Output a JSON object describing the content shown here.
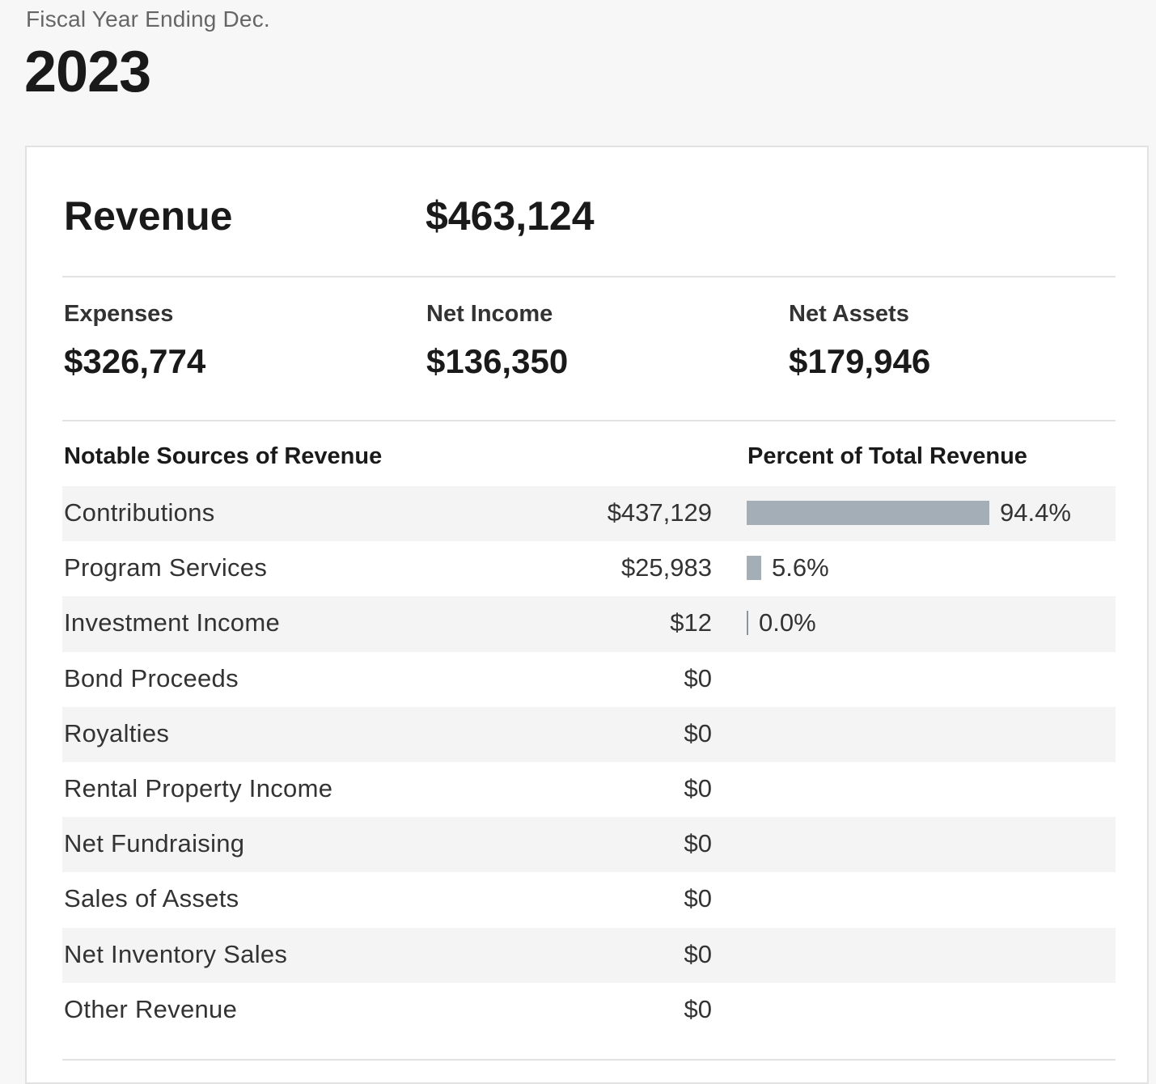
{
  "fiscal": {
    "label": "Fiscal Year Ending Dec.",
    "year": "2023"
  },
  "summary": {
    "revenue_label": "Revenue",
    "revenue_value": "$463,124",
    "expenses_label": "Expenses",
    "expenses_value": "$326,774",
    "net_income_label": "Net Income",
    "net_income_value": "$136,350",
    "net_assets_label": "Net Assets",
    "net_assets_value": "$179,946"
  },
  "table": {
    "sources_header": "Notable Sources of Revenue",
    "percent_header": "Percent of Total Revenue",
    "rows": [
      {
        "name": "Contributions",
        "amount": "$437,129",
        "percent": "94.4%",
        "percent_value": 94.4
      },
      {
        "name": "Program Services",
        "amount": "$25,983",
        "percent": "5.6%",
        "percent_value": 5.6
      },
      {
        "name": "Investment Income",
        "amount": "$12",
        "percent": "0.0%",
        "percent_value": 0.0
      },
      {
        "name": "Bond Proceeds",
        "amount": "$0"
      },
      {
        "name": "Royalties",
        "amount": "$0"
      },
      {
        "name": "Rental Property Income",
        "amount": "$0"
      },
      {
        "name": "Net Fundraising",
        "amount": "$0"
      },
      {
        "name": "Sales of Assets",
        "amount": "$0"
      },
      {
        "name": "Net Inventory Sales",
        "amount": "$0"
      },
      {
        "name": "Other Revenue",
        "amount": "$0"
      }
    ]
  },
  "colors": {
    "bar": "#a3aeb6",
    "row_shade": "#f4f4f4"
  }
}
